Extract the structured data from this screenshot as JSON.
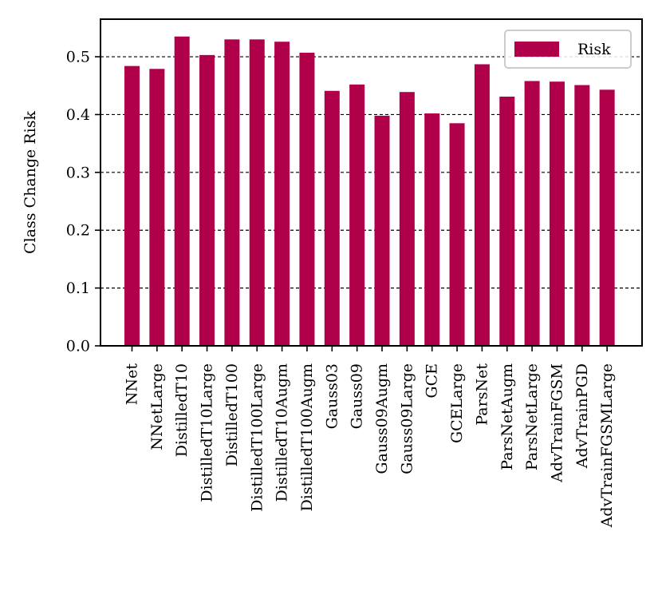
{
  "chart_data": {
    "type": "bar",
    "title": "",
    "xlabel": "",
    "ylabel": "Class Change Risk",
    "ylim": [
      0,
      0.565
    ],
    "yticks": [
      0.0,
      0.1,
      0.2,
      0.3,
      0.4,
      0.5
    ],
    "ytick_labels": [
      "0.0",
      "0.1",
      "0.2",
      "0.3",
      "0.4",
      "0.5"
    ],
    "grid": "horizontal-dashed",
    "legend_position": "top-right",
    "categories": [
      "NNet",
      "NNetLarge",
      "DistilledT10",
      "DistilledT10Large",
      "DistilledT100",
      "DistilledT100Large",
      "DistilledT10Augm",
      "DistilledT100Augm",
      "Gauss03",
      "Gauss09",
      "Gauss09Augm",
      "Gauss09Large",
      "GCE",
      "GCELarge",
      "ParsNet",
      "ParsNetAugm",
      "ParsNetLarge",
      "AdvTrainFGSM",
      "AdvTrainPGD",
      "AdvTrainFGSMLarge"
    ],
    "series": [
      {
        "name": "Risk",
        "color": "#b0004a",
        "values": [
          0.484,
          0.479,
          0.535,
          0.503,
          0.53,
          0.53,
          0.526,
          0.507,
          0.441,
          0.452,
          0.398,
          0.439,
          0.402,
          0.385,
          0.487,
          0.431,
          0.458,
          0.457,
          0.451,
          0.443
        ]
      }
    ]
  }
}
